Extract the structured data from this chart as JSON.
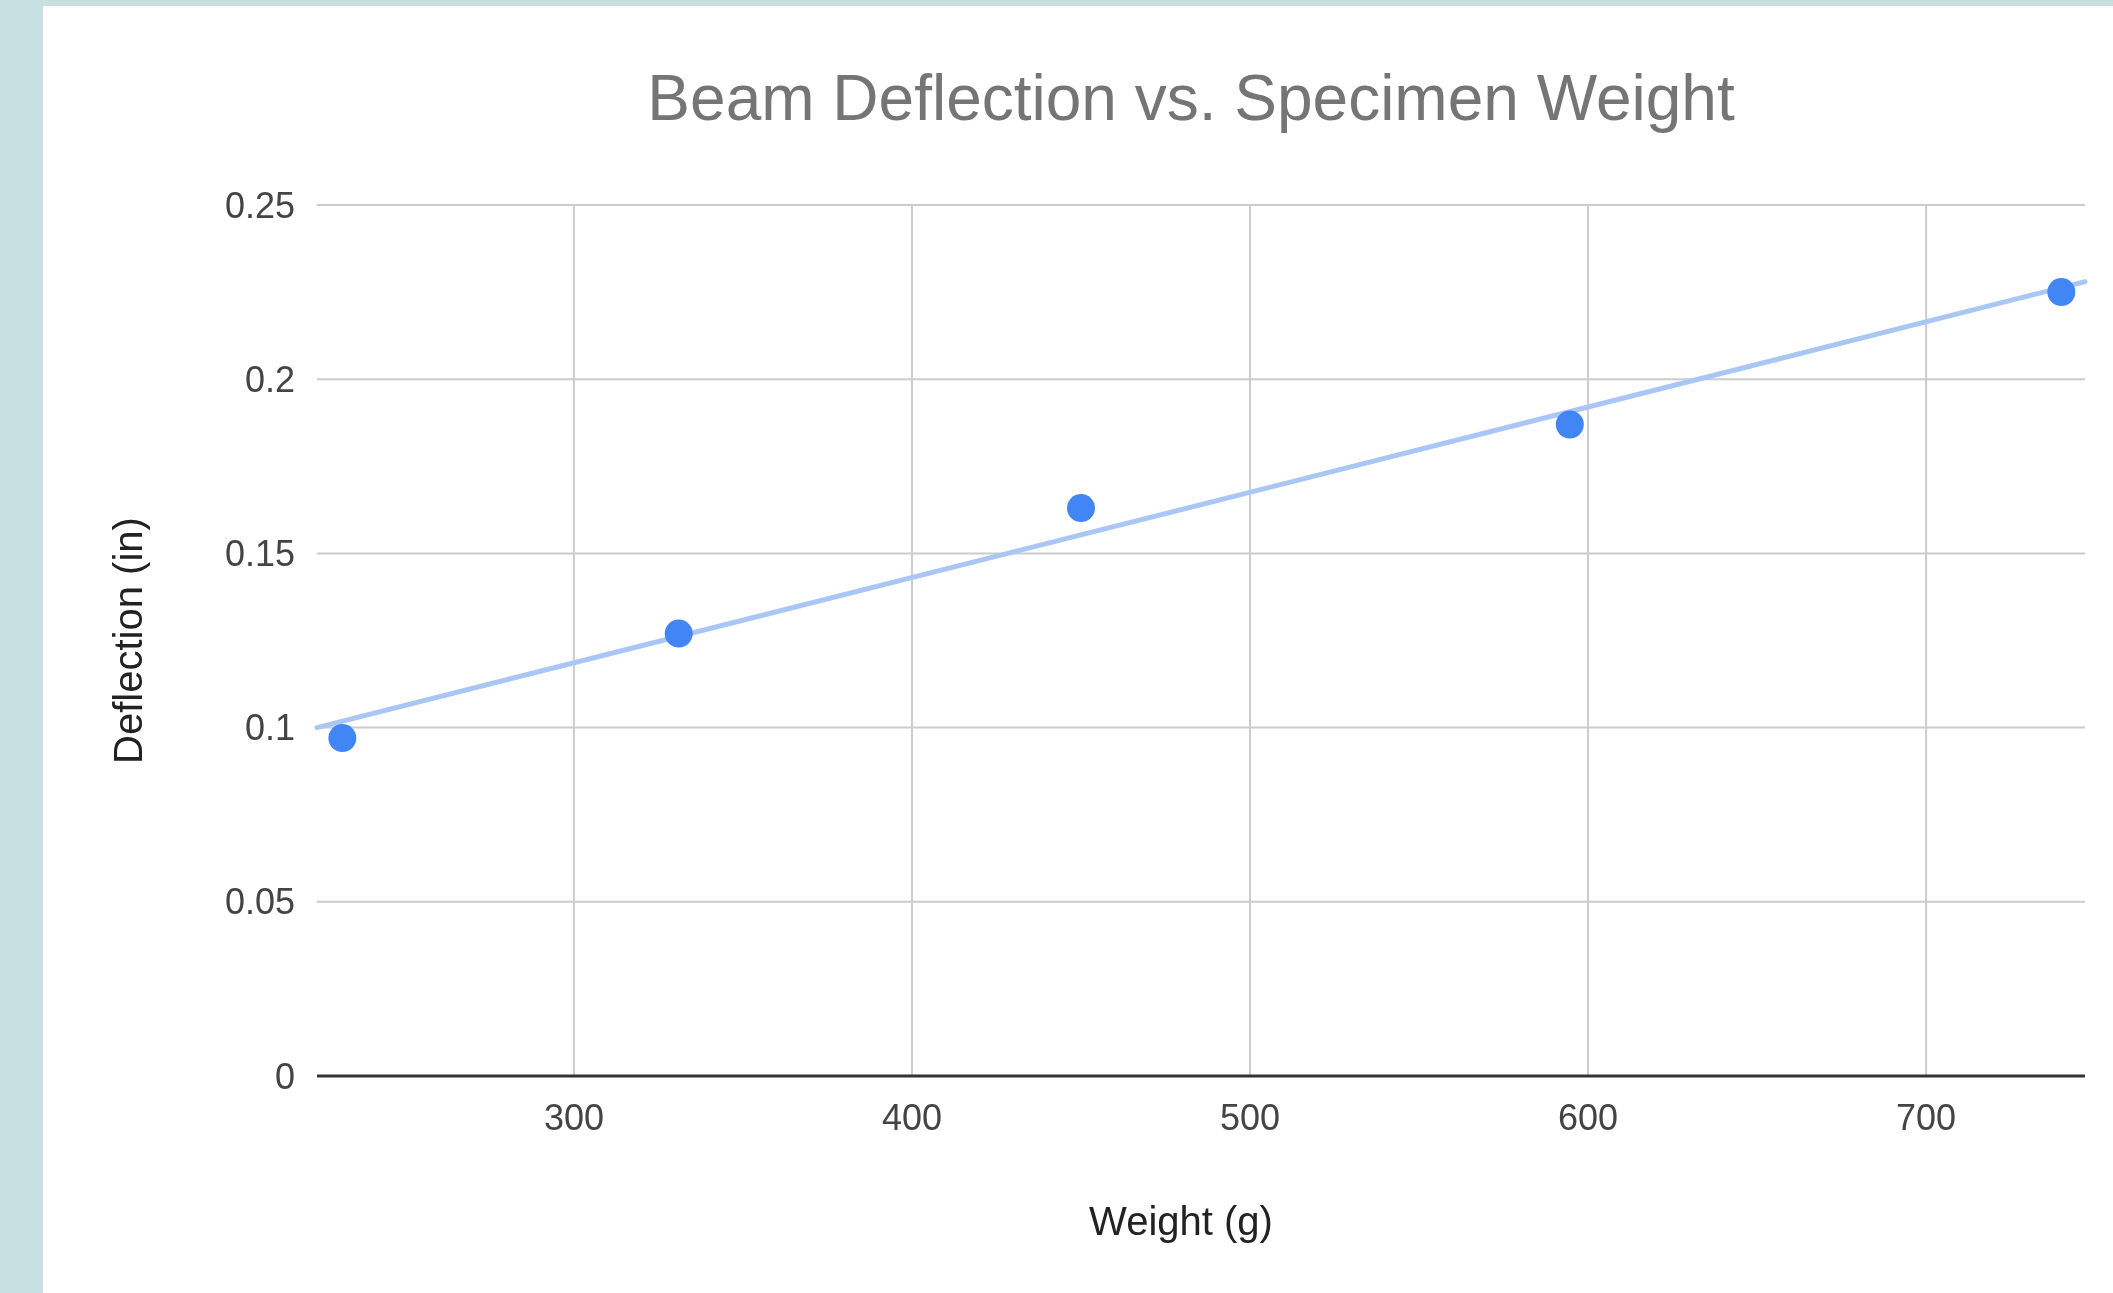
{
  "chart_data": {
    "type": "scatter",
    "title": "Beam Deflection  vs. Specimen Weight",
    "xlabel": "Weight (g)",
    "ylabel": "Deflection (in)",
    "x": [
      231.5,
      331,
      450,
      594.6,
      740
    ],
    "series": [
      {
        "color": "#4285f4",
        "values": [
          0.097,
          0.127,
          0.163,
          0.187,
          0.225
        ],
        "marker": "circle"
      },
      {
        "type": "line",
        "color": "#a9c6f6",
        "x": [
          224,
          747
        ],
        "values": [
          0.1,
          0.228
        ]
      }
    ],
    "xlim": [
      224,
      747
    ],
    "xticks": [
      300,
      400,
      500,
      600,
      700
    ],
    "ylim": [
      0,
      0.25
    ],
    "yticks": [
      0,
      0.05,
      0.1,
      0.15,
      0.2,
      0.25
    ],
    "grid": true
  }
}
